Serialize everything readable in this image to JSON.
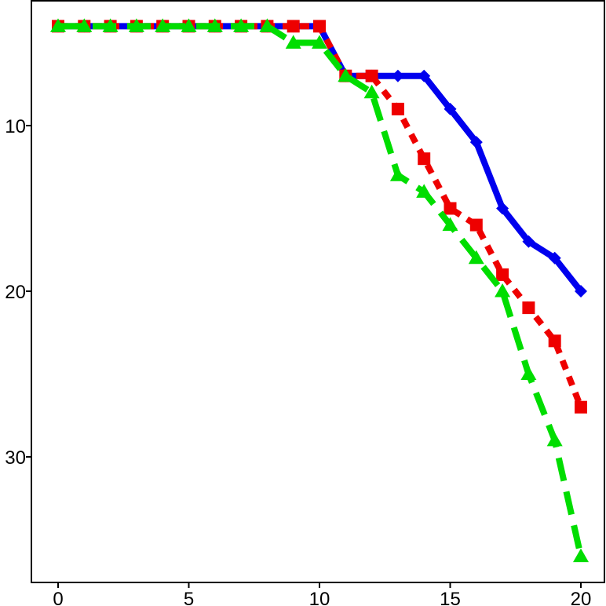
{
  "chart_data": {
    "type": "line",
    "title": "",
    "xlabel": "",
    "ylabel": "",
    "xlim": [
      -1,
      21
    ],
    "ylim": [
      3,
      37
    ],
    "y_reversed": true,
    "grid": false,
    "x_ticks": [
      {
        "value": 0,
        "label": "0"
      },
      {
        "value": 5,
        "label": "5"
      },
      {
        "value": 10,
        "label": "10"
      },
      {
        "value": 15,
        "label": "15"
      },
      {
        "value": 20,
        "label": "20"
      }
    ],
    "y_ticks": [
      {
        "value": 10,
        "label": "10"
      },
      {
        "value": 20,
        "label": "20"
      },
      {
        "value": 30,
        "label": "30"
      }
    ],
    "x": [
      0,
      1,
      2,
      3,
      4,
      5,
      6,
      7,
      8,
      9,
      10,
      11,
      12,
      13,
      14,
      15,
      16,
      17,
      18,
      19,
      20
    ],
    "series": [
      {
        "color": "#0000ee",
        "line_style": "solid",
        "marker": "diamond",
        "values": [
          4,
          4,
          4,
          4,
          4,
          4,
          4,
          4,
          4,
          4,
          4,
          7,
          7,
          7,
          7,
          9,
          11,
          15,
          17,
          18,
          20
        ]
      },
      {
        "color": "#ee0000",
        "line_style": "dotted",
        "marker": "square",
        "values": [
          4,
          4,
          4,
          4,
          4,
          4,
          4,
          4,
          4,
          4,
          4,
          7,
          7,
          9,
          12,
          15,
          16,
          19,
          21,
          23,
          27
        ]
      },
      {
        "color": "#00dd00",
        "line_style": "dashed",
        "marker": "triangle",
        "values": [
          4,
          4,
          4,
          4,
          4,
          4,
          4,
          4,
          4,
          5,
          5,
          7,
          8,
          13,
          14,
          16,
          18,
          20,
          25,
          29,
          36
        ]
      }
    ]
  }
}
